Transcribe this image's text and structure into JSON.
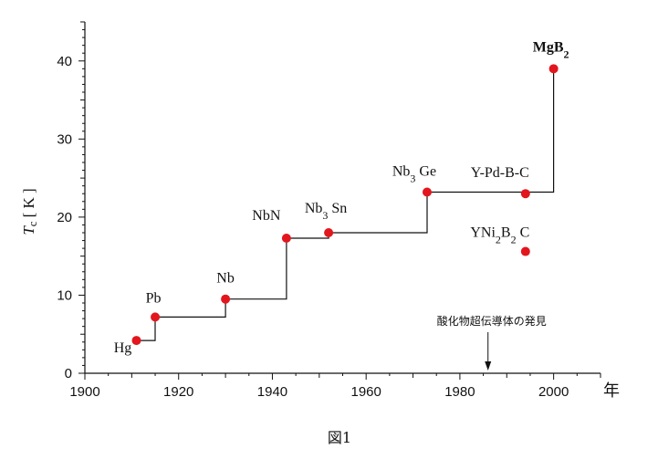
{
  "chart_data": {
    "type": "scatter",
    "xlim": [
      1900,
      2010
    ],
    "ylim": [
      0,
      45
    ],
    "x_ticks": [
      1900,
      1920,
      1940,
      1960,
      1980,
      2000
    ],
    "y_ticks": [
      0,
      10,
      20,
      30,
      40
    ],
    "x_unit": "年",
    "ylabel": {
      "italic": "T",
      "sub": "c",
      "rest": "[ K ]"
    },
    "caption": "図1",
    "annotation": {
      "text": "酸化物超伝導体の発見",
      "x": 1986
    },
    "grid": false,
    "point_color": "#e3161d",
    "points": [
      {
        "x": 1911,
        "y": 4.2,
        "label": "Hg",
        "sub_labels": []
      },
      {
        "x": 1915,
        "y": 7.2,
        "label": "Pb",
        "sub_labels": []
      },
      {
        "x": 1930,
        "y": 9.5,
        "label": "Nb",
        "sub_labels": []
      },
      {
        "x": 1943,
        "y": 17.3,
        "label": "NbN",
        "sub_labels": []
      },
      {
        "x": 1952,
        "y": 18.0,
        "label": "Nb3 Sn",
        "parts": [
          "Nb",
          "3",
          " Sn"
        ]
      },
      {
        "x": 1973,
        "y": 23.2,
        "label": "Nb3 Ge",
        "parts": [
          "Nb",
          "3",
          " Ge"
        ]
      },
      {
        "x": 1994,
        "y": 23.0,
        "label": "Y-Pd-B-C",
        "parts": [
          "Y-Pd-B-C"
        ]
      },
      {
        "x": 1994,
        "y": 15.6,
        "label": "YNi2B2 C",
        "parts": [
          "YNi",
          "2",
          "B",
          "2",
          " C"
        ]
      },
      {
        "x": 2000,
        "y": 39.0,
        "label": "MgB2",
        "parts": [
          "MgB",
          "2"
        ]
      }
    ],
    "step_path": [
      [
        1911,
        4.2
      ],
      [
        1915,
        4.2
      ],
      [
        1915,
        7.2
      ],
      [
        1930,
        7.2
      ],
      [
        1930,
        9.5
      ],
      [
        1943,
        9.5
      ],
      [
        1943,
        17.3
      ],
      [
        1952,
        17.3
      ],
      [
        1952,
        18.0
      ],
      [
        1973,
        18.0
      ],
      [
        1973,
        23.2
      ],
      [
        2000,
        23.2
      ],
      [
        2000,
        39.0
      ]
    ]
  }
}
